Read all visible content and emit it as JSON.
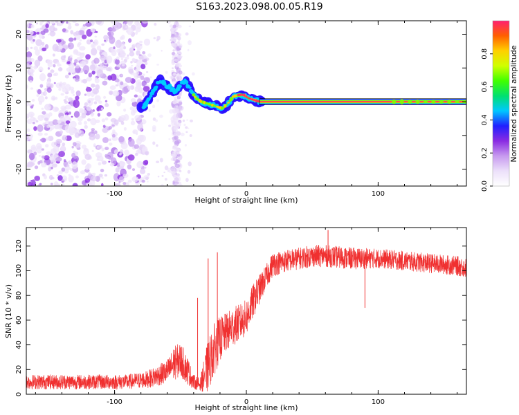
{
  "title": "S163.2023.098.00.05.R19",
  "chart_data": [
    {
      "type": "heatmap",
      "xlabel": "Height of straight line (km)",
      "ylabel": "Frequency (Hz)",
      "xlim": [
        -167,
        167
      ],
      "ylim": [
        -25,
        24
      ],
      "xticks": [
        -100,
        0,
        100
      ],
      "yticks": [
        -20,
        -10,
        0,
        10,
        20
      ],
      "colorbar": {
        "label": "Normalized spectral amplitude",
        "range": [
          0,
          1
        ],
        "ticks": [
          "0.0",
          "0.2",
          "0.4",
          "0.6",
          "0.8"
        ],
        "colors": [
          "#ffffff",
          "#ece0fa",
          "#c79aef",
          "#8a2be2",
          "#2020ff",
          "#00c8ff",
          "#00e070",
          "#40ff00",
          "#d0ff00",
          "#ffd000",
          "#ff6000",
          "#ff2070"
        ]
      },
      "ridge": {
        "description_points_x": [
          -78,
          -74,
          -70,
          -66,
          -62,
          -58,
          -54,
          -50,
          -46,
          -42,
          -38,
          -34,
          -30,
          -26,
          -22,
          -18,
          -14,
          -10,
          -6,
          -2,
          2,
          6,
          10,
          20,
          60,
          100,
          140,
          167
        ],
        "description_points_y": [
          -1.5,
          1,
          3.5,
          6,
          5,
          4,
          3,
          5,
          6,
          3,
          1,
          0,
          -0.5,
          -1,
          -1.5,
          -2,
          -0.5,
          1.5,
          2,
          2,
          1,
          0.5,
          0,
          0,
          0,
          0,
          0,
          0
        ]
      }
    },
    {
      "type": "line",
      "xlabel": "Height of straight line (km)",
      "ylabel": "SNR (10 * v/v)",
      "xlim": [
        -167,
        167
      ],
      "ylim": [
        0,
        135
      ],
      "xticks": [
        -100,
        0,
        100
      ],
      "yticks": [
        0,
        20,
        40,
        60,
        80,
        100,
        120
      ],
      "line_color": "#f03030",
      "envelope": {
        "x": [
          -167,
          -90,
          -75,
          -60,
          -55,
          -50,
          -45,
          -40,
          -35,
          -30,
          -25,
          -20,
          -15,
          -10,
          -5,
          0,
          5,
          10,
          15,
          20,
          30,
          40,
          50,
          60,
          80,
          100,
          120,
          140,
          160,
          167
        ],
        "mean": [
          10,
          10,
          12,
          18,
          25,
          28,
          20,
          10,
          8,
          20,
          35,
          45,
          50,
          55,
          58,
          62,
          75,
          85,
          95,
          105,
          108,
          110,
          112,
          112,
          110,
          110,
          108,
          106,
          104,
          102
        ],
        "spread": [
          6,
          6,
          7,
          10,
          14,
          14,
          12,
          6,
          5,
          20,
          22,
          18,
          16,
          16,
          15,
          15,
          14,
          12,
          10,
          10,
          9,
          9,
          9,
          9,
          9,
          8,
          8,
          8,
          8,
          8
        ]
      },
      "spikes": [
        {
          "x": -29,
          "y": 110
        },
        {
          "x": -22,
          "y": 115
        },
        {
          "x": -37,
          "y": 78
        },
        {
          "x": 62,
          "y": 133
        },
        {
          "x": 90,
          "y": 70
        }
      ]
    }
  ]
}
